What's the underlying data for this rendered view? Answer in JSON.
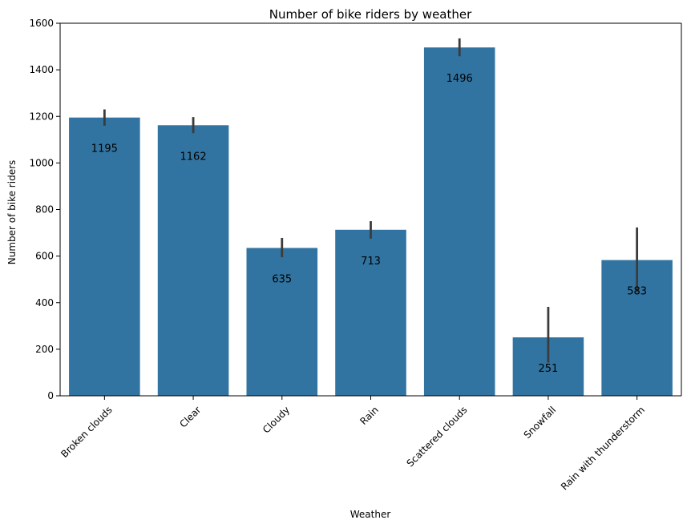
{
  "chart_data": {
    "type": "bar",
    "title": "Number of bike riders by weather",
    "xlabel": "Weather",
    "ylabel": "Number of bike riders",
    "categories": [
      "Broken clouds",
      "Clear",
      "Cloudy",
      "Rain",
      "Scattered clouds",
      "Snowfall",
      "Rain with thunderstorm"
    ],
    "values": [
      1195,
      1162,
      635,
      713,
      1496,
      251,
      583
    ],
    "value_labels": [
      "1195",
      "1162",
      "635",
      "713",
      "1496",
      "251",
      "583"
    ],
    "error_bars": [
      {
        "low": 1160,
        "high": 1230
      },
      {
        "low": 1128,
        "high": 1197
      },
      {
        "low": 595,
        "high": 678
      },
      {
        "low": 675,
        "high": 750
      },
      {
        "low": 1458,
        "high": 1535
      },
      {
        "low": 143,
        "high": 382
      },
      {
        "low": 445,
        "high": 723
      }
    ],
    "ylim": [
      0,
      1600
    ],
    "yticks": [
      0,
      200,
      400,
      600,
      800,
      1000,
      1200,
      1400,
      1600
    ],
    "grid": false,
    "colors": {
      "bar": "#3274a1",
      "error_bar": "#3b3b3b",
      "axis": "#000000"
    }
  }
}
